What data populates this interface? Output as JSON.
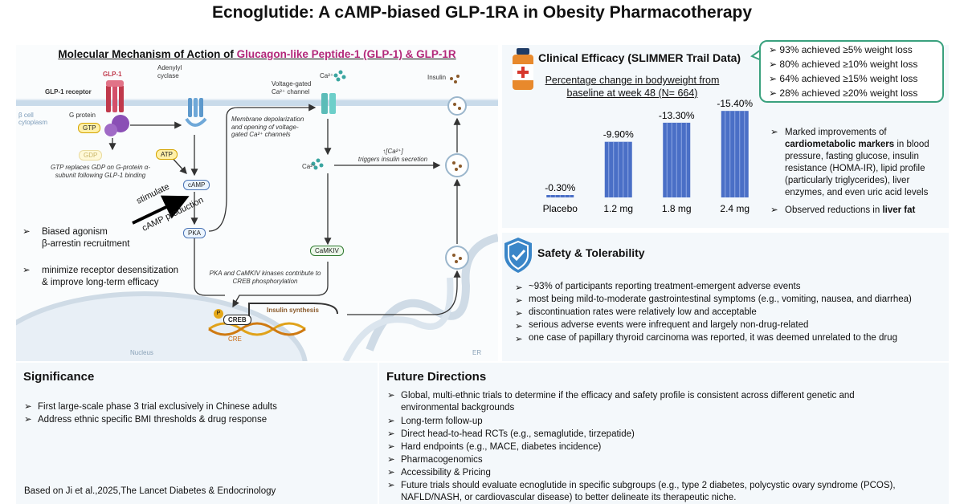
{
  "title": "Ecnoglutide: A cAMP-biased  GLP-1RA in Obesity Pharmacotherapy",
  "mechanism": {
    "title_prefix": "Molecular Mechanism of Action of ",
    "title_highlight": "Glucagon-like Peptide-1 (GLP-1) & GLP-1R",
    "labels": {
      "glp1": "GLP-1",
      "receptor": "GLP-1 receptor",
      "gprotein": "G protein",
      "beta_cell": "β cell\ncytoplasm",
      "gtp": "GTP",
      "gdp": "GDP",
      "gtp_note": "GTP replaces GDP on G-protein α-subunit following GLP-1 binding",
      "adenylyl": "Adenylyl\ncyclase",
      "atp": "ATP",
      "camp": "cAMP",
      "pka": "PKA",
      "stimulate": "stimulate",
      "camp_production": "cAMP production",
      "ca_top": "Ca²⁺",
      "channel": "Voltage-gated\nCa²⁺ channel",
      "membrane_note": "Membrane depolarization and opening of voltage-gated Ca²⁺ channels",
      "ca_mid": "Ca²⁺",
      "ca_trigger": "↑[Ca²⁺]\ntriggers insulin secretion",
      "camkiv": "CaMKIV",
      "creb_note": "PKA and CaMKIV kinases contribute to CREB phosphorylation",
      "p": "P",
      "creb": "CREB",
      "cre": "CRE",
      "insulin_synthesis": "Insulin synthesis",
      "nucleus": "Nucleus",
      "er": "ER",
      "insulin": "Insulin"
    },
    "bullets": [
      {
        "mark": "➢",
        "line1": "Biased agonism",
        "line2": "β-arrestin recruitment"
      },
      {
        "mark": "➢",
        "line1": "minimize receptor desensitization",
        "line2": "& improve long-term efficacy"
      }
    ]
  },
  "efficacy": {
    "title": "Clinical Efficacy (SLIMMER Trail Data)",
    "callout": [
      "93% achieved  ≥5% weight loss",
      "80% achieved ≥10% weight loss",
      "64% achieved  ≥15% weight loss",
      "28% achieved ≥20% weight loss"
    ],
    "callout_mark": "➢",
    "bullet_mark": "➢",
    "bullet1": {
      "line1": "Marked improvements of",
      "bold": "cardiometabolic markers",
      "rest": " in blood pressure, fasting glucose, insulin resistance (HOMA-IR), lipid profile (particularly triglycerides), liver enzymes, and even uric acid levels"
    },
    "bullet2": {
      "prefix": "Observed reductions in ",
      "bold": "liver fat"
    },
    "colors": {
      "bar": "#4a6fc6",
      "callout_border": "#3aa17e"
    }
  },
  "chart_data": {
    "type": "bar",
    "title": "Percentage change in bodyweight from baseline at week 48 (N= 664)",
    "categories": [
      "Placebo",
      "1.2 mg",
      "1.8 mg",
      "2.4 mg"
    ],
    "values": [
      -0.3,
      -9.9,
      -13.3,
      -15.4
    ],
    "data_labels": [
      "-0.30%",
      "-9.90%",
      "-13.30%",
      "-15.40%"
    ],
    "ylim": [
      0,
      -16
    ],
    "xlabel": "",
    "ylabel": "",
    "grid": false
  },
  "safety": {
    "title": "Safety & Tolerability",
    "mark": "➢",
    "items": [
      "~93% of participants reporting treatment-emergent adverse events",
      "most being mild-to-moderate gastrointestinal symptoms (e.g., vomiting, nausea, and diarrhea)",
      "discontinuation rates were relatively low and acceptable",
      "serious adverse events were infrequent and largely non-drug-related",
      "one case of papillary thyroid carcinoma was reported, it was deemed unrelated to the drug"
    ],
    "colors": {
      "shield": "#3a86c8"
    }
  },
  "significance": {
    "title": "Significance",
    "mark": "➢",
    "items": [
      "First large-scale phase 3 trial exclusively in Chinese adults",
      "Address ethnic specific BMI thresholds & drug response"
    ],
    "citation": "Based on Ji et al.,2025,The Lancet Diabetes & Endocrinology"
  },
  "future": {
    "title": "Future Directions",
    "mark": "➢",
    "items": [
      {
        "line1": "Global, multi-ethnic trials to determine if the efficacy and safety profile is consistent across different genetic and",
        "line2": "environmental backgrounds"
      },
      {
        "line1": "Long-term follow-up",
        "line2": ""
      },
      {
        "line1": "Direct head-to-head RCTs (e.g., semaglutide, tirzepatide)",
        "line2": ""
      },
      {
        "line1": "Hard endpoints (e.g., MACE, diabetes incidence)",
        "line2": ""
      },
      {
        "line1": "Pharmacogenomics",
        "line2": ""
      },
      {
        "line1": "Accessibility & Pricing",
        "line2": ""
      },
      {
        "line1": "Future trials should evaluate ecnoglutide in specific subgroups (e.g., type 2 diabetes, polycystic ovary syndrome (PCOS),",
        "line2": "NAFLD/NASH, or cardiovascular disease) to better delineate its therapeutic niche."
      }
    ]
  }
}
